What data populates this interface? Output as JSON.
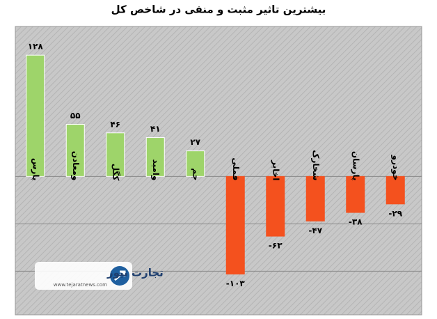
{
  "chart_data": {
    "type": "bar",
    "title": "بیشترین تاثیر مثبت و منفی در شاخص کل",
    "categories": [
      "پارس",
      "ومعادن",
      "کگل",
      "وامید",
      "جم",
      "فملی",
      "اخابر",
      "شخارک",
      "پارسان",
      "خودرو"
    ],
    "values": [
      128,
      55,
      46,
      41,
      27,
      -103,
      -63,
      -47,
      -38,
      -29
    ],
    "value_labels": [
      "۱۲۸",
      "۵۵",
      "۴۶",
      "۴۱",
      "۲۷",
      "-۱۰۳",
      "-۶۳",
      "-۴۷",
      "-۳۸",
      "-۲۹"
    ],
    "positive_color": "#9ed46a",
    "negative_color": "#f4511e",
    "ylim": [
      -146,
      148
    ],
    "yticks": [
      -100,
      -50,
      0
    ],
    "grid": true
  },
  "watermark": {
    "name": "تجارت نیوز",
    "url": "www.tejaratnews.com"
  }
}
